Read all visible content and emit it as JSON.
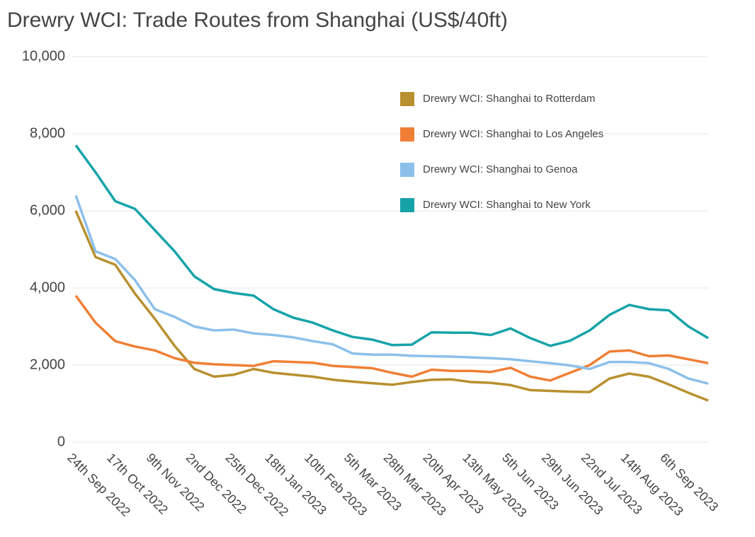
{
  "chart_data": {
    "type": "line",
    "title": "Drewry WCI: Trade Routes from Shanghai (US$/40ft)",
    "categories": [
      "24th Sep 2022",
      null,
      "17th Oct 2022",
      null,
      "9th Nov 2022",
      null,
      "2nd Dec 2022",
      null,
      "25th Dec 2022",
      null,
      "18th Jan 2023",
      null,
      "10th Feb 2023",
      null,
      "5th Mar 2023",
      null,
      "28th Mar 2023",
      null,
      "20th Apr 2023",
      null,
      "13th May 2023",
      null,
      "5th Jun 2023",
      null,
      "29th Jun 2023",
      null,
      "22nd Jul 2023",
      null,
      "14th Aug 2023",
      null,
      "6th Sep 2023",
      null,
      null
    ],
    "series": [
      {
        "name": "Drewry WCI: Shanghai to Rotterdam",
        "color": "#b8902f",
        "values": [
          6000,
          4800,
          4600,
          3850,
          3200,
          2500,
          1900,
          1700,
          1750,
          1900,
          1800,
          1750,
          1700,
          1620,
          1570,
          1530,
          1490,
          1560,
          1620,
          1630,
          1560,
          1540,
          1480,
          1350,
          1330,
          1310,
          1300,
          1650,
          1780,
          1700,
          1500,
          1280,
          1080
        ]
      },
      {
        "name": "Drewry WCI: Shanghai to Los Angeles",
        "color": "#f07f35",
        "values": [
          3800,
          3100,
          2620,
          2480,
          2380,
          2180,
          2060,
          2020,
          2000,
          1980,
          2100,
          2080,
          2060,
          1980,
          1950,
          1920,
          1800,
          1700,
          1880,
          1850,
          1850,
          1820,
          1930,
          1700,
          1600,
          1800,
          2000,
          2350,
          2380,
          2230,
          2250,
          2150,
          2050
        ]
      },
      {
        "name": "Drewry WCI: Shanghai to Genoa",
        "color": "#8cc0ea",
        "values": [
          6400,
          4950,
          4750,
          4200,
          3450,
          3250,
          3000,
          2900,
          2920,
          2820,
          2780,
          2720,
          2620,
          2540,
          2300,
          2270,
          2270,
          2240,
          2230,
          2220,
          2200,
          2180,
          2150,
          2100,
          2050,
          1990,
          1900,
          2080,
          2080,
          2050,
          1900,
          1650,
          1520
        ]
      },
      {
        "name": "Drewry WCI: Shanghai to New York",
        "color": "#16a3a8",
        "values": [
          7700,
          7000,
          6250,
          6050,
          5500,
          4950,
          4300,
          3970,
          3870,
          3800,
          3450,
          3230,
          3100,
          2900,
          2730,
          2660,
          2520,
          2530,
          2850,
          2840,
          2840,
          2780,
          2950,
          2700,
          2500,
          2630,
          2900,
          3300,
          3560,
          3450,
          3420,
          3000,
          2700
        ]
      }
    ],
    "ylim": [
      0,
      10000
    ],
    "yticks": [
      0,
      {
        "value": 2000,
        "label": "2,000"
      },
      {
        "value": 4000,
        "label": "4,000"
      },
      {
        "value": 6000,
        "label": "6,000"
      },
      {
        "value": 8000,
        "label": "8,000"
      },
      {
        "value": 10000,
        "label": "10,000"
      }
    ],
    "grid": true,
    "legend": "upper right"
  }
}
